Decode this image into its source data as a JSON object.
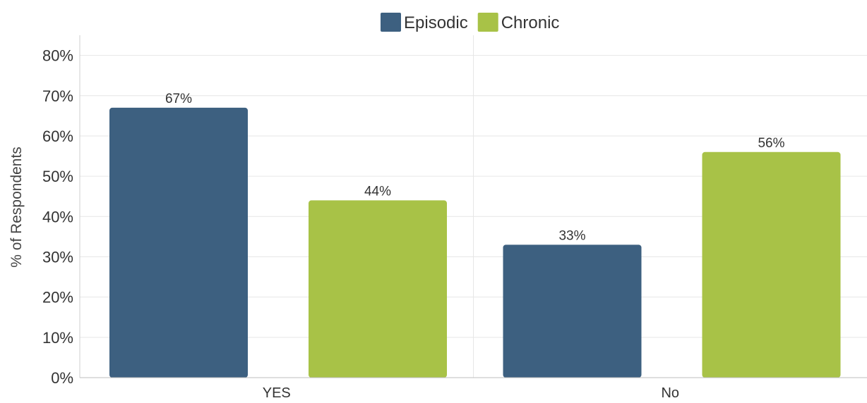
{
  "chart_data": {
    "type": "bar",
    "categories": [
      "YES",
      "No"
    ],
    "series": [
      {
        "name": "Episodic",
        "color": "#3d6080",
        "values": [
          67,
          33
        ],
        "labels": [
          "67%",
          "33%"
        ]
      },
      {
        "name": "Chronic",
        "color": "#a8c247",
        "values": [
          44,
          56
        ],
        "labels": [
          "44%",
          "56%"
        ]
      }
    ],
    "ylabel": "% of Respondents",
    "ylim": [
      0,
      85
    ],
    "yticks": [
      0,
      10,
      20,
      30,
      40,
      50,
      60,
      70,
      80
    ],
    "ytick_labels": [
      "0%",
      "10%",
      "20%",
      "30%",
      "40%",
      "50%",
      "60%",
      "70%",
      "80%"
    ],
    "grid": true,
    "legend_position": "top-center"
  }
}
